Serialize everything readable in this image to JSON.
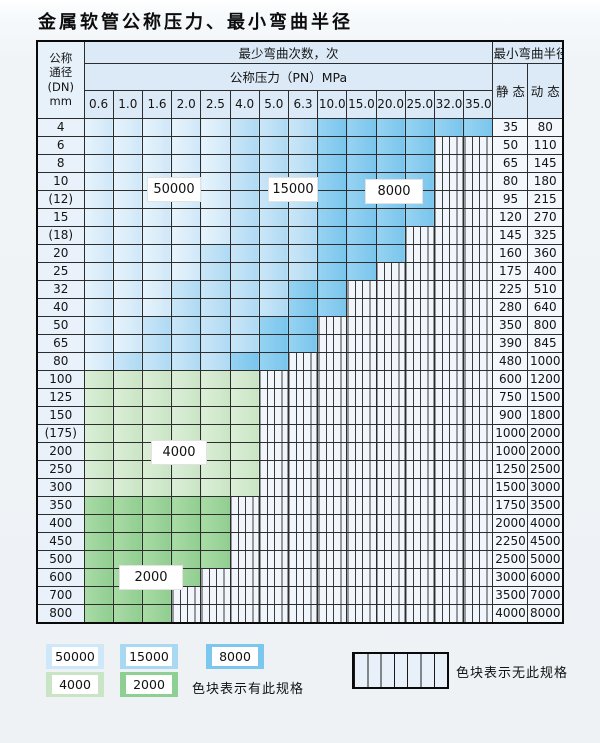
{
  "title": "金属软管公称压力、最小弯曲半径",
  "table": {
    "dn_header": "公称\n通径\n(DN)\nmm",
    "bend_times_header": "最少弯曲次数，次",
    "pressure_header": "公称压力（PN）MPa",
    "radius_header": "最小弯曲半径",
    "static_label": "静 态",
    "dynamic_label": "动 态",
    "pressure_columns": [
      "0.6",
      "1.0",
      "1.6",
      "2.0",
      "2.5",
      "4.0",
      "5.0",
      "6.3",
      "10.0",
      "15.0",
      "20.0",
      "25.0",
      "32.0",
      "35.0"
    ],
    "cell_legend": {
      "L": "50000次区",
      "M": "15000次区",
      "D": "8000次区",
      "G1": "4000次区",
      "G2": "2000次区",
      "H": "无此规格"
    },
    "rows": [
      {
        "dn": "4",
        "cells": [
          "L",
          "L",
          "L",
          "L",
          "L",
          "M",
          "M",
          "M",
          "D",
          "D",
          "D",
          "D",
          "D",
          "D"
        ],
        "static": "35",
        "dynamic": "80"
      },
      {
        "dn": "6",
        "cells": [
          "L",
          "L",
          "L",
          "L",
          "L",
          "M",
          "M",
          "M",
          "D",
          "D",
          "D",
          "D",
          "H",
          "H"
        ],
        "static": "50",
        "dynamic": "110"
      },
      {
        "dn": "8",
        "cells": [
          "L",
          "L",
          "L",
          "L",
          "L",
          "M",
          "M",
          "M",
          "D",
          "D",
          "D",
          "D",
          "H",
          "H"
        ],
        "static": "65",
        "dynamic": "145"
      },
      {
        "dn": "10",
        "cells": [
          "L",
          "L",
          "L",
          "L",
          "L",
          "M",
          "M",
          "M",
          "D",
          "D",
          "D",
          "D",
          "H",
          "H"
        ],
        "static": "80",
        "dynamic": "180"
      },
      {
        "dn": "(12)",
        "cells": [
          "L",
          "L",
          "L",
          "L",
          "L",
          "M",
          "M",
          "M",
          "D",
          "D",
          "D",
          "D",
          "H",
          "H"
        ],
        "static": "95",
        "dynamic": "215"
      },
      {
        "dn": "15",
        "cells": [
          "L",
          "L",
          "L",
          "L",
          "L",
          "M",
          "M",
          "M",
          "D",
          "D",
          "D",
          "D",
          "H",
          "H"
        ],
        "static": "120",
        "dynamic": "270"
      },
      {
        "dn": "(18)",
        "cells": [
          "L",
          "L",
          "L",
          "L",
          "L",
          "M",
          "M",
          "M",
          "D",
          "D",
          "D",
          "H",
          "H",
          "H"
        ],
        "static": "145",
        "dynamic": "325"
      },
      {
        "dn": "20",
        "cells": [
          "L",
          "L",
          "L",
          "L",
          "M",
          "M",
          "M",
          "M",
          "D",
          "D",
          "D",
          "H",
          "H",
          "H"
        ],
        "static": "160",
        "dynamic": "360"
      },
      {
        "dn": "25",
        "cells": [
          "L",
          "L",
          "L",
          "L",
          "M",
          "M",
          "M",
          "M",
          "D",
          "D",
          "H",
          "H",
          "H",
          "H"
        ],
        "static": "175",
        "dynamic": "400"
      },
      {
        "dn": "32",
        "cells": [
          "L",
          "L",
          "L",
          "M",
          "M",
          "M",
          "M",
          "D",
          "D",
          "H",
          "H",
          "H",
          "H",
          "H"
        ],
        "static": "225",
        "dynamic": "510"
      },
      {
        "dn": "40",
        "cells": [
          "L",
          "L",
          "L",
          "M",
          "M",
          "M",
          "M",
          "D",
          "D",
          "H",
          "H",
          "H",
          "H",
          "H"
        ],
        "static": "280",
        "dynamic": "640"
      },
      {
        "dn": "50",
        "cells": [
          "L",
          "L",
          "M",
          "M",
          "M",
          "M",
          "D",
          "D",
          "H",
          "H",
          "H",
          "H",
          "H",
          "H"
        ],
        "static": "350",
        "dynamic": "800"
      },
      {
        "dn": "65",
        "cells": [
          "L",
          "L",
          "M",
          "M",
          "M",
          "M",
          "D",
          "D",
          "H",
          "H",
          "H",
          "H",
          "H",
          "H"
        ],
        "static": "390",
        "dynamic": "845"
      },
      {
        "dn": "80",
        "cells": [
          "L",
          "M",
          "M",
          "M",
          "M",
          "D",
          "D",
          "H",
          "H",
          "H",
          "H",
          "H",
          "H",
          "H"
        ],
        "static": "480",
        "dynamic": "1000"
      },
      {
        "dn": "100",
        "cells": [
          "G1",
          "G1",
          "G1",
          "G1",
          "G1",
          "G1",
          "H",
          "H",
          "H",
          "H",
          "H",
          "H",
          "H",
          "H"
        ],
        "static": "600",
        "dynamic": "1200"
      },
      {
        "dn": "125",
        "cells": [
          "G1",
          "G1",
          "G1",
          "G1",
          "G1",
          "G1",
          "H",
          "H",
          "H",
          "H",
          "H",
          "H",
          "H",
          "H"
        ],
        "static": "750",
        "dynamic": "1500"
      },
      {
        "dn": "150",
        "cells": [
          "G1",
          "G1",
          "G1",
          "G1",
          "G1",
          "G1",
          "H",
          "H",
          "H",
          "H",
          "H",
          "H",
          "H",
          "H"
        ],
        "static": "900",
        "dynamic": "1800"
      },
      {
        "dn": "(175)",
        "cells": [
          "G1",
          "G1",
          "G1",
          "G1",
          "G1",
          "G1",
          "H",
          "H",
          "H",
          "H",
          "H",
          "H",
          "H",
          "H"
        ],
        "static": "1000",
        "dynamic": "2000"
      },
      {
        "dn": "200",
        "cells": [
          "G1",
          "G1",
          "G1",
          "G1",
          "G1",
          "G1",
          "H",
          "H",
          "H",
          "H",
          "H",
          "H",
          "H",
          "H"
        ],
        "static": "1000",
        "dynamic": "2000"
      },
      {
        "dn": "250",
        "cells": [
          "G1",
          "G1",
          "G1",
          "G1",
          "G1",
          "G1",
          "H",
          "H",
          "H",
          "H",
          "H",
          "H",
          "H",
          "H"
        ],
        "static": "1250",
        "dynamic": "2500"
      },
      {
        "dn": "300",
        "cells": [
          "G1",
          "G1",
          "G1",
          "G1",
          "G1",
          "G1",
          "H",
          "H",
          "H",
          "H",
          "H",
          "H",
          "H",
          "H"
        ],
        "static": "1500",
        "dynamic": "3000"
      },
      {
        "dn": "350",
        "cells": [
          "G2",
          "G2",
          "G2",
          "G2",
          "G2",
          "H",
          "H",
          "H",
          "H",
          "H",
          "H",
          "H",
          "H",
          "H"
        ],
        "static": "1750",
        "dynamic": "3500"
      },
      {
        "dn": "400",
        "cells": [
          "G2",
          "G2",
          "G2",
          "G2",
          "G2",
          "H",
          "H",
          "H",
          "H",
          "H",
          "H",
          "H",
          "H",
          "H"
        ],
        "static": "2000",
        "dynamic": "4000"
      },
      {
        "dn": "450",
        "cells": [
          "G2",
          "G2",
          "G2",
          "G2",
          "G2",
          "H",
          "H",
          "H",
          "H",
          "H",
          "H",
          "H",
          "H",
          "H"
        ],
        "static": "2250",
        "dynamic": "4500"
      },
      {
        "dn": "500",
        "cells": [
          "G2",
          "G2",
          "G2",
          "G2",
          "G2",
          "H",
          "H",
          "H",
          "H",
          "H",
          "H",
          "H",
          "H",
          "H"
        ],
        "static": "2500",
        "dynamic": "5000"
      },
      {
        "dn": "600",
        "cells": [
          "G2",
          "G2",
          "G2",
          "G2",
          "H",
          "H",
          "H",
          "H",
          "H",
          "H",
          "H",
          "H",
          "H",
          "H"
        ],
        "static": "3000",
        "dynamic": "6000"
      },
      {
        "dn": "700",
        "cells": [
          "G2",
          "G2",
          "G2",
          "H",
          "H",
          "H",
          "H",
          "H",
          "H",
          "H",
          "H",
          "H",
          "H",
          "H"
        ],
        "static": "3500",
        "dynamic": "7000"
      },
      {
        "dn": "800",
        "cells": [
          "G2",
          "G2",
          "G2",
          "H",
          "H",
          "H",
          "H",
          "H",
          "H",
          "H",
          "H",
          "H",
          "H",
          "H"
        ],
        "static": "4000",
        "dynamic": "8000"
      }
    ]
  },
  "overlays": {
    "cycles_50000": "50000",
    "cycles_15000": "15000",
    "cycles_8000": "8000",
    "cycles_4000": "4000",
    "cycles_2000": "2000"
  },
  "legend": {
    "swatches": [
      {
        "label": "50000",
        "color": "#cfe8f9"
      },
      {
        "label": "15000",
        "color": "#a9d8f3"
      },
      {
        "label": "8000",
        "color": "#7cc7ed"
      },
      {
        "label": "4000",
        "color": "#c9e5c5"
      },
      {
        "label": "2000",
        "color": "#8ed093"
      }
    ],
    "has_spec_text": "色块表示有此规格",
    "no_spec_text": "色块表示无此规格"
  },
  "colors": {
    "blue_light": "#d8ecfa",
    "blue_mid": "#bedff6",
    "blue_dark": "#84cbef",
    "green_light": "#d3e9cf",
    "green_mid": "#9cd29b",
    "hatch_bg": "#f0f6fc",
    "grid_line": "#2d2d2d",
    "header_bg": "#dceaf7"
  }
}
